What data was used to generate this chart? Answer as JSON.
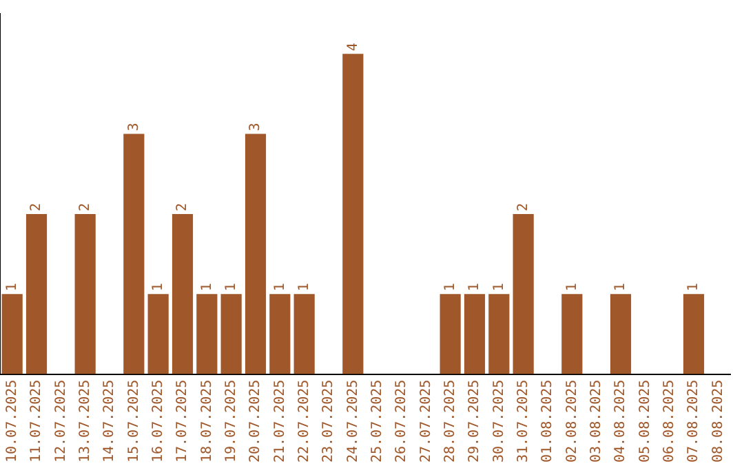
{
  "chart_data": {
    "type": "bar",
    "categories": [
      "10.07.2025",
      "11.07.2025",
      "12.07.2025",
      "13.07.2025",
      "14.07.2025",
      "15.07.2025",
      "16.07.2025",
      "17.07.2025",
      "18.07.2025",
      "19.07.2025",
      "20.07.2025",
      "21.07.2025",
      "22.07.2025",
      "23.07.2025",
      "24.07.2025",
      "25.07.2025",
      "26.07.2025",
      "27.07.2025",
      "28.07.2025",
      "29.07.2025",
      "30.07.2025",
      "31.07.2025",
      "01.08.2025",
      "02.08.2025",
      "03.08.2025",
      "04.08.2025",
      "05.08.2025",
      "06.08.2025",
      "07.08.2025",
      "08.08.2025"
    ],
    "values": [
      1,
      2,
      0,
      2,
      0,
      3,
      1,
      2,
      1,
      1,
      3,
      1,
      1,
      0,
      4,
      0,
      0,
      0,
      1,
      1,
      1,
      2,
      0,
      1,
      0,
      1,
      0,
      0,
      1,
      0
    ],
    "value_labels": [
      "1",
      "2",
      null,
      "2",
      null,
      "3",
      "1",
      "2",
      "1",
      "1",
      "3",
      "1",
      "1",
      null,
      "4",
      null,
      null,
      null,
      "1",
      "1",
      "1",
      "2",
      null,
      "1",
      null,
      "1",
      null,
      null,
      "1",
      null
    ],
    "color": "#a0582a",
    "grid": false,
    "legend": false,
    "tick_labels": "x"
  }
}
